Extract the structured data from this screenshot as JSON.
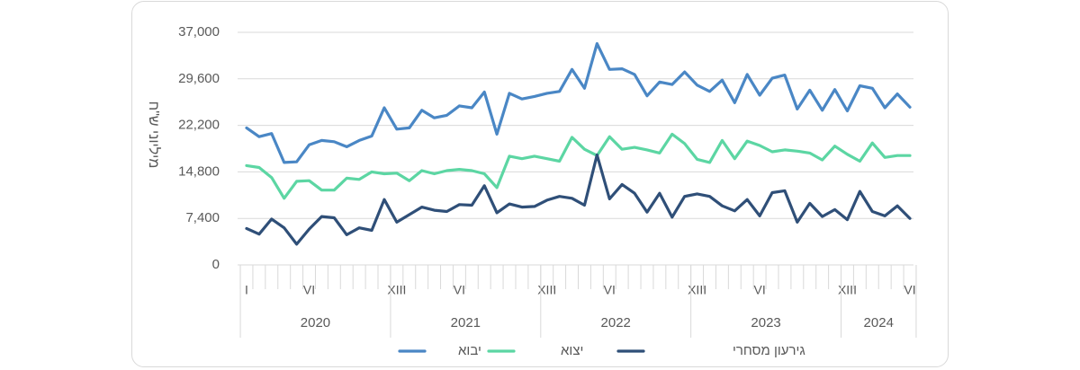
{
  "chart_data": {
    "type": "line",
    "ylabel": "מיליוני ש\"ח",
    "ylim": [
      0,
      37000
    ],
    "yticks": [
      "37,000",
      "29,600",
      "22,200",
      "14,800",
      "7,400",
      "0"
    ],
    "ytick_values": [
      37000,
      29600,
      22200,
      14800,
      7400,
      0
    ],
    "grid": "horizontal",
    "legend": "bottom",
    "month_ticks": [
      {
        "index": 0,
        "label": "I"
      },
      {
        "index": 5,
        "label": "VI"
      },
      {
        "index": 12,
        "label": "XIII"
      },
      {
        "index": 17,
        "label": "VI"
      },
      {
        "index": 24,
        "label": "XIII"
      },
      {
        "index": 29,
        "label": "VI"
      },
      {
        "index": 36,
        "label": "XIII"
      },
      {
        "index": 41,
        "label": "VI"
      },
      {
        "index": 48,
        "label": "XIII"
      },
      {
        "index": 53,
        "label": "VI"
      }
    ],
    "year_groups": [
      {
        "label": "2020",
        "start": 0,
        "end": 11
      },
      {
        "label": "2021",
        "start": 12,
        "end": 23
      },
      {
        "label": "2022",
        "start": 24,
        "end": 35
      },
      {
        "label": "2023",
        "start": 36,
        "end": 47
      },
      {
        "label": "2024",
        "start": 48,
        "end": 53
      }
    ],
    "series": [
      {
        "name": "יבוא",
        "color": "#4a87c5",
        "values": [
          21800,
          20400,
          20900,
          16300,
          16400,
          19100,
          19800,
          19600,
          18800,
          19800,
          20500,
          25000,
          21600,
          21800,
          24600,
          23400,
          23800,
          25300,
          25000,
          27500,
          20800,
          27300,
          26400,
          26800,
          27300,
          27600,
          31100,
          28100,
          35200,
          31100,
          31200,
          30300,
          26900,
          29100,
          28700,
          30700,
          28600,
          27600,
          29400,
          25800,
          30300,
          27000,
          29700,
          30200,
          24800,
          27800,
          24600,
          27900,
          24500,
          28500,
          28100,
          25000,
          27200,
          25100
        ]
      },
      {
        "name": "יצוא",
        "color": "#5cd6a3",
        "values": [
          15800,
          15500,
          13900,
          10600,
          13300,
          13400,
          11900,
          11900,
          13800,
          13600,
          14800,
          14500,
          14600,
          13400,
          15000,
          14500,
          15000,
          15200,
          15000,
          14500,
          12300,
          17300,
          16900,
          17300,
          16900,
          16500,
          20300,
          18400,
          17400,
          20400,
          18400,
          18700,
          18300,
          17800,
          20800,
          19300,
          16800,
          16300,
          19800,
          16900,
          19700,
          19000,
          18000,
          18300,
          18100,
          17800,
          16700,
          18900,
          17600,
          16500,
          19400,
          17100,
          17400,
          17400
        ]
      },
      {
        "name": "גירעון מסחרי",
        "color": "#2f4f78",
        "values": [
          5800,
          4900,
          7300,
          5900,
          3300,
          5700,
          7700,
          7500,
          4800,
          5900,
          5500,
          10400,
          6800,
          8000,
          9200,
          8700,
          8500,
          9600,
          9500,
          12600,
          8300,
          9700,
          9200,
          9300,
          10300,
          10900,
          10600,
          9500,
          17500,
          10500,
          12800,
          11400,
          8400,
          11400,
          7600,
          10900,
          11300,
          10900,
          9400,
          8600,
          10400,
          7800,
          11500,
          11800,
          6800,
          9800,
          7700,
          8800,
          7200,
          11700,
          8500,
          7800,
          9400,
          7400
        ]
      }
    ]
  }
}
